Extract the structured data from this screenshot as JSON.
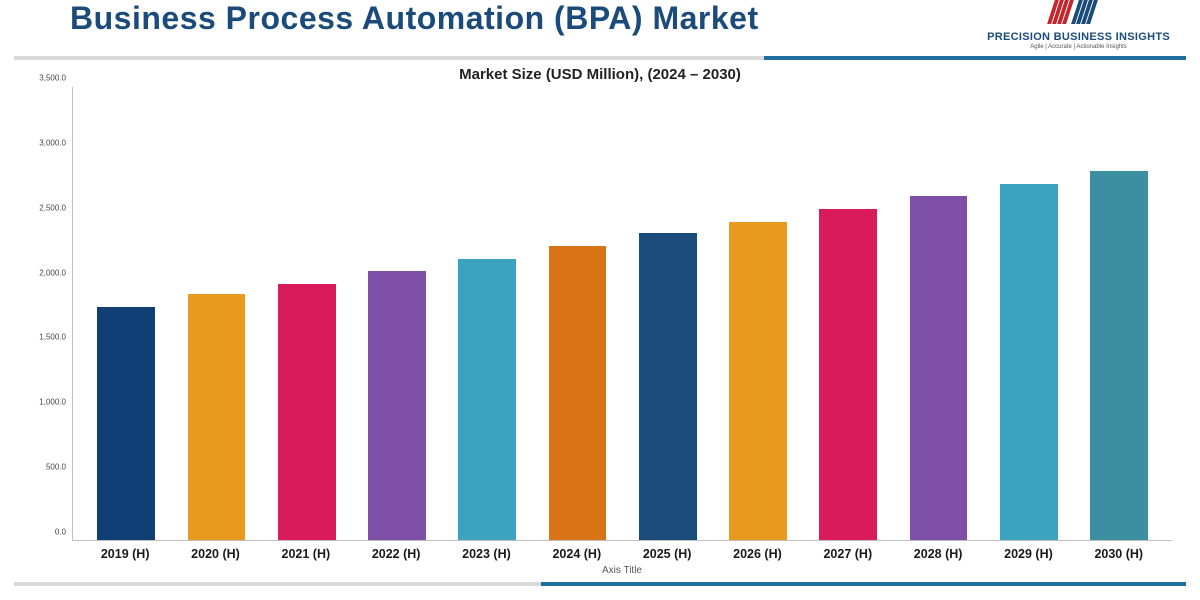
{
  "header": {
    "title": "Business Process Automation (BPA) Market",
    "logo": {
      "brand": "PRECISION BUSINESS INSIGHTS",
      "tagline": "Agile | Accurate | Actionable Insights",
      "red": "#c1272d",
      "blue": "#1a4b7a"
    }
  },
  "chart": {
    "type": "bar",
    "title": "Market Size (USD Million), (2024 – 2030)",
    "axis_title": "Axis Title",
    "ylim": [
      0,
      3500
    ],
    "ytick_step": 500,
    "y_ticks": [
      "0.0",
      "500.0",
      "1,000.0",
      "1,500.0",
      "2,000.0",
      "2,500.0",
      "3,000.0",
      "3,500.0"
    ],
    "categories": [
      "2019 (H)",
      "2020 (H)",
      "2021 (H)",
      "2022 (H)",
      "2023 (H)",
      "2024 (H)",
      "2025 (H)",
      "2026 (H)",
      "2027 (H)",
      "2028 (H)",
      "2029 (H)",
      "2030 (H)"
    ],
    "values": [
      1800,
      1900,
      1980,
      2080,
      2170,
      2270,
      2370,
      2460,
      2560,
      2660,
      2750,
      2850
    ],
    "bar_colors": [
      "#0f3f75",
      "#e89a1f",
      "#d91a5b",
      "#7e4fa6",
      "#3aa4c0",
      "#d87416",
      "#1a4b7a",
      "#e89a1f",
      "#d91a5b",
      "#7e4fa6",
      "#3aa4c0",
      "#3c8fa0"
    ],
    "bar_width": 0.64,
    "background_color": "#ffffff",
    "axis_color": "#bfbfbf",
    "tick_fontsize": 8,
    "category_fontsize": 12.5,
    "category_fontweight": "700",
    "title_fontsize": 15
  },
  "divider": {
    "seg1_color": "#d9d9d9",
    "seg2_color": "#1f6e9c"
  }
}
